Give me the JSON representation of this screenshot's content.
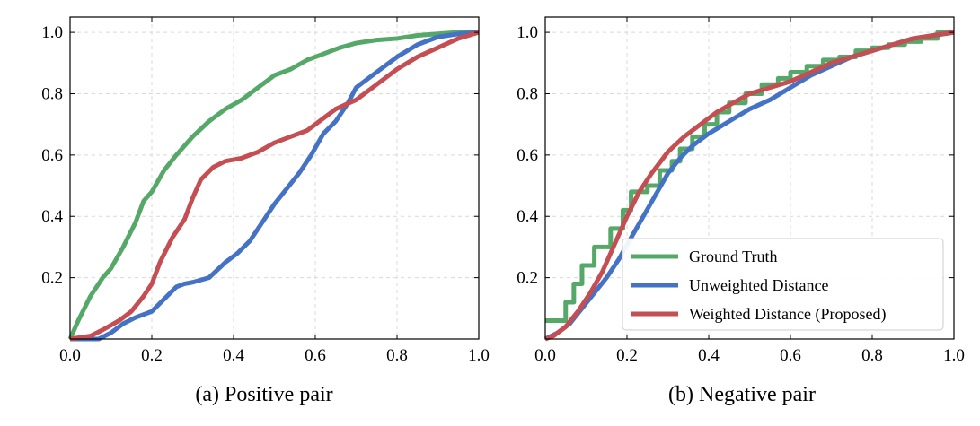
{
  "colors": {
    "ground_truth": "#55a868",
    "unweighted": "#4472c4",
    "weighted": "#c44e52",
    "grid": "#d9d9d9",
    "axis": "#000000"
  },
  "chart_data": [
    {
      "type": "line",
      "caption": "(a) Positive pair",
      "title": "",
      "xlabel": "",
      "ylabel": "",
      "xlim": [
        0,
        1
      ],
      "ylim": [
        0,
        1.05
      ],
      "xticks": [
        "0.0",
        "0.2",
        "0.4",
        "0.6",
        "0.8",
        "1.0"
      ],
      "yticks": [
        "0.2",
        "0.4",
        "0.6",
        "0.8",
        "1.0"
      ],
      "grid": true,
      "legend": null,
      "series": [
        {
          "name": "Ground Truth",
          "color": "#55a868",
          "step": false,
          "x": [
            0,
            0.02,
            0.05,
            0.08,
            0.1,
            0.13,
            0.16,
            0.18,
            0.2,
            0.23,
            0.26,
            0.3,
            0.34,
            0.38,
            0.42,
            0.46,
            0.5,
            0.54,
            0.58,
            0.62,
            0.66,
            0.7,
            0.75,
            0.8,
            0.85,
            0.9,
            0.95,
            1.0
          ],
          "y": [
            0,
            0.06,
            0.14,
            0.2,
            0.23,
            0.3,
            0.38,
            0.45,
            0.48,
            0.55,
            0.6,
            0.66,
            0.71,
            0.75,
            0.78,
            0.82,
            0.86,
            0.88,
            0.91,
            0.93,
            0.95,
            0.965,
            0.975,
            0.98,
            0.99,
            0.995,
            1.0,
            1.0
          ]
        },
        {
          "name": "Unweighted Distance",
          "color": "#4472c4",
          "step": false,
          "x": [
            0,
            0.07,
            0.1,
            0.13,
            0.16,
            0.2,
            0.23,
            0.26,
            0.28,
            0.3,
            0.34,
            0.38,
            0.41,
            0.44,
            0.47,
            0.5,
            0.53,
            0.56,
            0.59,
            0.62,
            0.65,
            0.68,
            0.7,
            0.72,
            0.75,
            0.8,
            0.85,
            0.9,
            0.95,
            1.0
          ],
          "y": [
            0,
            0.0,
            0.02,
            0.05,
            0.07,
            0.09,
            0.13,
            0.17,
            0.18,
            0.185,
            0.2,
            0.25,
            0.28,
            0.32,
            0.38,
            0.44,
            0.49,
            0.54,
            0.6,
            0.67,
            0.71,
            0.77,
            0.82,
            0.84,
            0.87,
            0.92,
            0.96,
            0.985,
            0.995,
            1.0
          ]
        },
        {
          "name": "Weighted Distance (Proposed)",
          "color": "#c44e52",
          "step": false,
          "x": [
            0,
            0.05,
            0.08,
            0.12,
            0.15,
            0.18,
            0.2,
            0.22,
            0.25,
            0.28,
            0.3,
            0.32,
            0.35,
            0.38,
            0.42,
            0.46,
            0.5,
            0.54,
            0.58,
            0.62,
            0.65,
            0.7,
            0.75,
            0.8,
            0.85,
            0.9,
            0.95,
            1.0
          ],
          "y": [
            0,
            0.01,
            0.03,
            0.06,
            0.09,
            0.14,
            0.18,
            0.25,
            0.33,
            0.39,
            0.46,
            0.52,
            0.56,
            0.58,
            0.59,
            0.61,
            0.64,
            0.66,
            0.68,
            0.72,
            0.75,
            0.78,
            0.83,
            0.88,
            0.92,
            0.95,
            0.98,
            1.0
          ]
        }
      ]
    },
    {
      "type": "line",
      "caption": "(b) Negative pair",
      "title": "",
      "xlabel": "",
      "ylabel": "",
      "xlim": [
        0,
        1
      ],
      "ylim": [
        0,
        1.05
      ],
      "xticks": [
        "0.0",
        "0.2",
        "0.4",
        "0.6",
        "0.8",
        "1.0"
      ],
      "yticks": [
        "0.2",
        "0.4",
        "0.6",
        "0.8",
        "1.0"
      ],
      "grid": true,
      "legend": "lower-right",
      "series": [
        {
          "name": "Ground Truth",
          "color": "#55a868",
          "step": true,
          "x": [
            0,
            0.05,
            0.07,
            0.09,
            0.12,
            0.16,
            0.19,
            0.21,
            0.25,
            0.28,
            0.31,
            0.33,
            0.36,
            0.39,
            0.42,
            0.45,
            0.49,
            0.53,
            0.57,
            0.6,
            0.64,
            0.68,
            0.72,
            0.76,
            0.8,
            0.84,
            0.88,
            0.92,
            0.96,
            1.0
          ],
          "y": [
            0.06,
            0.12,
            0.18,
            0.24,
            0.3,
            0.36,
            0.42,
            0.48,
            0.5,
            0.55,
            0.58,
            0.62,
            0.66,
            0.7,
            0.74,
            0.77,
            0.8,
            0.83,
            0.85,
            0.87,
            0.89,
            0.91,
            0.92,
            0.94,
            0.95,
            0.96,
            0.97,
            0.98,
            1.0,
            1.0
          ]
        },
        {
          "name": "Unweighted Distance",
          "color": "#4472c4",
          "step": false,
          "x": [
            0,
            0.03,
            0.06,
            0.09,
            0.12,
            0.15,
            0.18,
            0.21,
            0.24,
            0.27,
            0.3,
            0.33,
            0.36,
            0.4,
            0.45,
            0.5,
            0.55,
            0.6,
            0.65,
            0.7,
            0.75,
            0.8,
            0.85,
            0.9,
            0.95,
            1.0
          ],
          "y": [
            0,
            0.02,
            0.05,
            0.1,
            0.15,
            0.2,
            0.26,
            0.33,
            0.4,
            0.47,
            0.54,
            0.59,
            0.63,
            0.67,
            0.71,
            0.75,
            0.78,
            0.82,
            0.86,
            0.89,
            0.92,
            0.94,
            0.96,
            0.98,
            0.99,
            1.0
          ]
        },
        {
          "name": "Weighted Distance (Proposed)",
          "color": "#c44e52",
          "step": false,
          "x": [
            0,
            0.02,
            0.05,
            0.08,
            0.11,
            0.14,
            0.17,
            0.2,
            0.23,
            0.26,
            0.3,
            0.34,
            0.38,
            0.42,
            0.46,
            0.5,
            0.55,
            0.6,
            0.65,
            0.7,
            0.75,
            0.8,
            0.85,
            0.9,
            0.95,
            1.0
          ],
          "y": [
            0,
            0.01,
            0.04,
            0.09,
            0.15,
            0.22,
            0.31,
            0.4,
            0.48,
            0.54,
            0.61,
            0.66,
            0.7,
            0.74,
            0.77,
            0.8,
            0.82,
            0.84,
            0.87,
            0.9,
            0.92,
            0.94,
            0.96,
            0.98,
            0.99,
            1.0
          ]
        }
      ]
    }
  ]
}
